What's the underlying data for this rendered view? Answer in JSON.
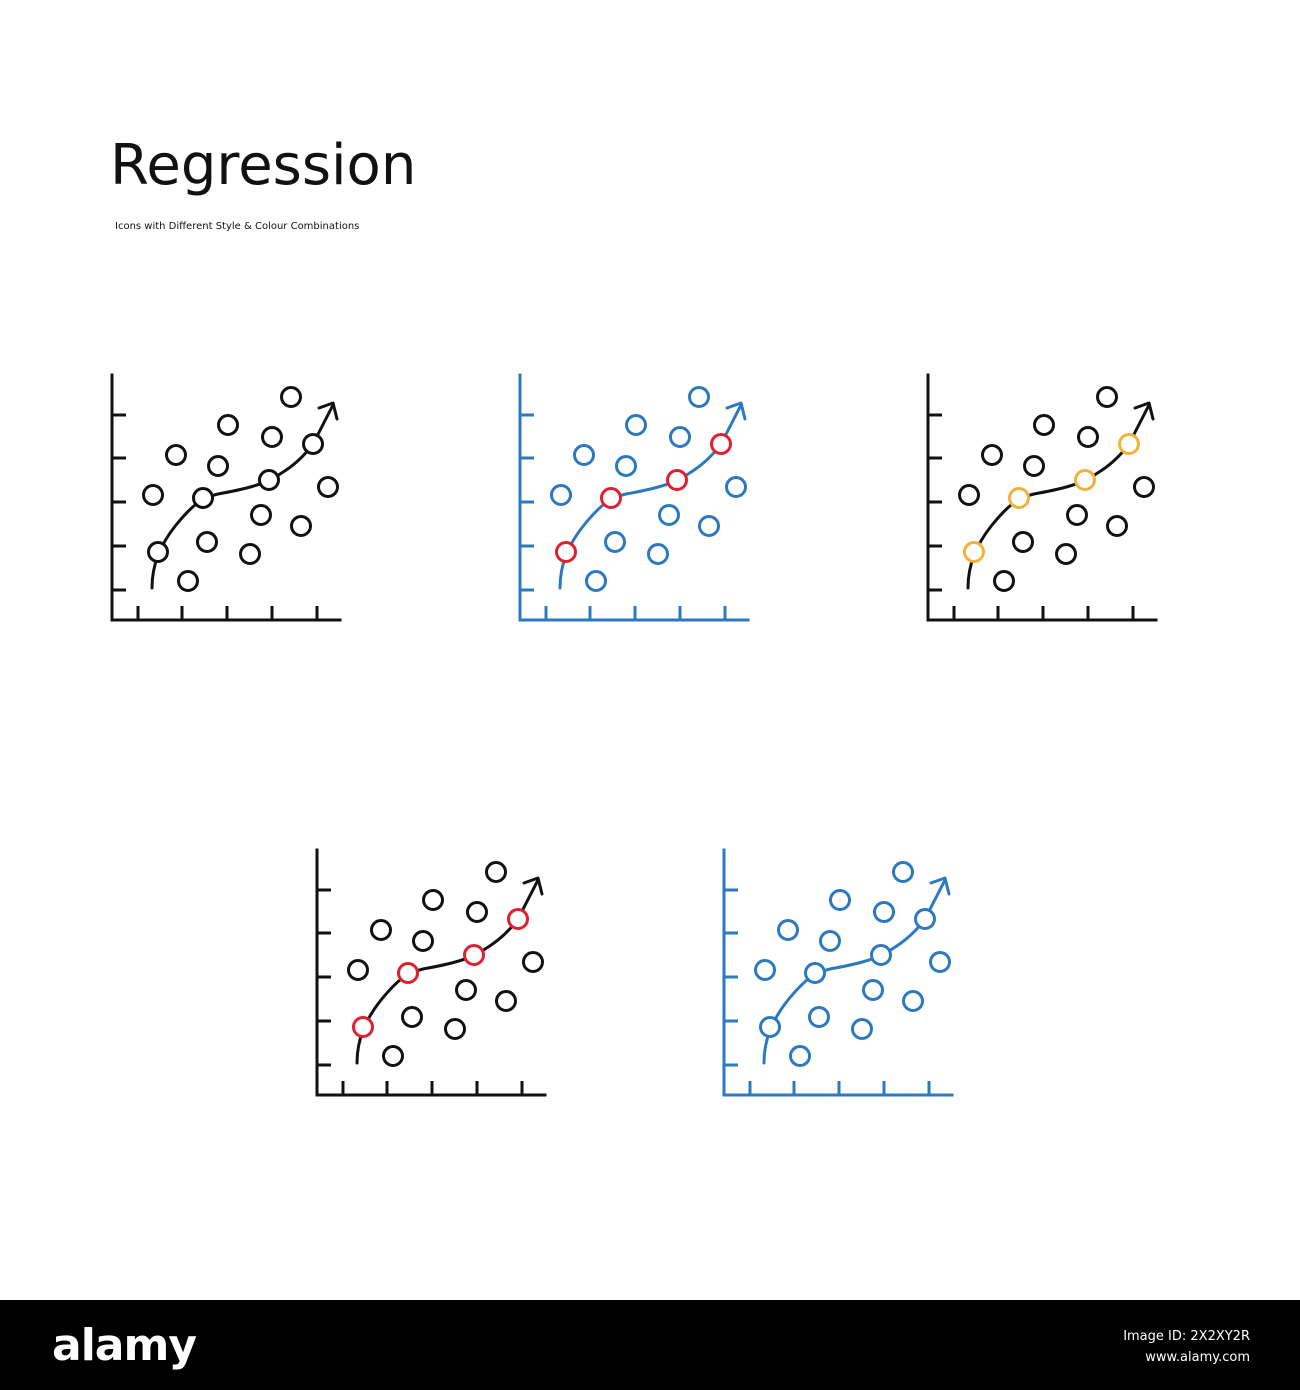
{
  "header": {
    "title": "Regression",
    "subtitle": "Icons with Different Style & Colour Combinations"
  },
  "colors": {
    "black": "#111111",
    "blue": "#2c79bf",
    "red": "#e0202f",
    "yellow": "#f2b13c"
  },
  "icons": [
    {
      "id": "black-outline",
      "axis": "black",
      "scatter": "black",
      "curve": "black",
      "highlight": "black"
    },
    {
      "id": "blue-red",
      "axis": "blue",
      "scatter": "blue",
      "curve": "blue",
      "highlight": "red"
    },
    {
      "id": "black-yellow",
      "axis": "black",
      "scatter": "black",
      "curve": "black",
      "highlight": "yellow"
    },
    {
      "id": "black-red",
      "axis": "black",
      "scatter": "black",
      "curve": "black",
      "highlight": "red"
    },
    {
      "id": "blue-filled",
      "axis": "blue",
      "scatter": "blue",
      "curve": "blue",
      "highlight": "blue",
      "filled": true
    }
  ],
  "footer": {
    "brand": "alamy",
    "image_id": "Image ID: 2X2XY2R",
    "site": "www.alamy.com"
  }
}
